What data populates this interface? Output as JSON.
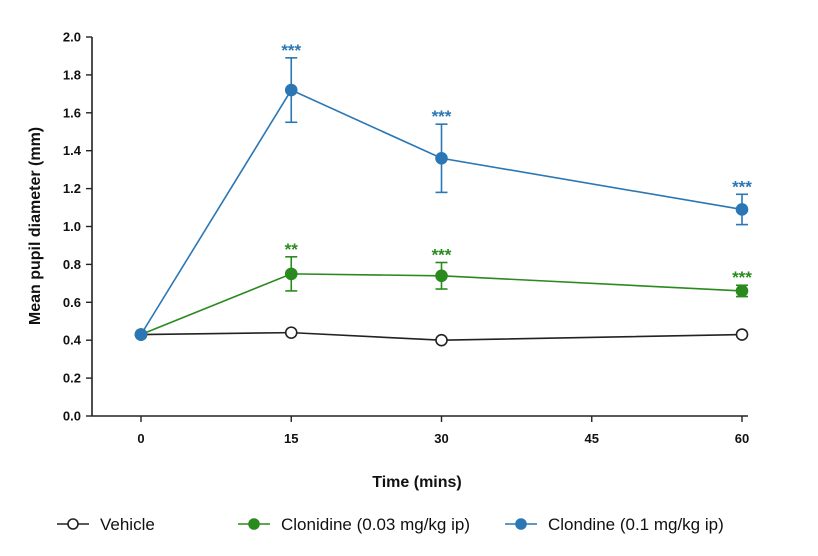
{
  "chart_data": {
    "type": "line",
    "title": "",
    "xlabel": "Time (mins)",
    "ylabel": "Mean pupil diameter (mm)",
    "x": [
      0,
      15,
      30,
      60
    ],
    "xticks": [
      "0",
      "15",
      "30",
      "45",
      "60"
    ],
    "yticks": [
      "0.0",
      "0.2",
      "0.4",
      "0.6",
      "0.8",
      "1.0",
      "1.2",
      "1.4",
      "1.6",
      "1.8",
      "2.0"
    ],
    "xlim": [
      -5,
      62
    ],
    "ylim": [
      0,
      2.0
    ],
    "grid": false,
    "legend_position": "bottom",
    "series": [
      {
        "name": "Vehicle",
        "color": "#222222",
        "marker": "open-circle",
        "values": [
          0.43,
          0.44,
          0.4,
          0.43
        ],
        "error": [
          0,
          0,
          0,
          0
        ],
        "significance": [
          "",
          "",
          "",
          ""
        ]
      },
      {
        "name": "Clonidine (0.03 mg/kg ip)",
        "color": "#2a8a1e",
        "marker": "filled-circle",
        "values": [
          0.43,
          0.75,
          0.74,
          0.66
        ],
        "error": [
          0,
          0.09,
          0.07,
          0.03
        ],
        "significance": [
          "",
          "**",
          "***",
          "***"
        ]
      },
      {
        "name": "Clondine (0.1 mg/kg ip)",
        "color": "#2b77b5",
        "marker": "filled-circle",
        "values": [
          0.43,
          1.72,
          1.36,
          1.09
        ],
        "error": [
          0,
          0.17,
          0.18,
          0.08
        ],
        "significance": [
          "",
          "***",
          "***",
          "***"
        ]
      }
    ]
  }
}
